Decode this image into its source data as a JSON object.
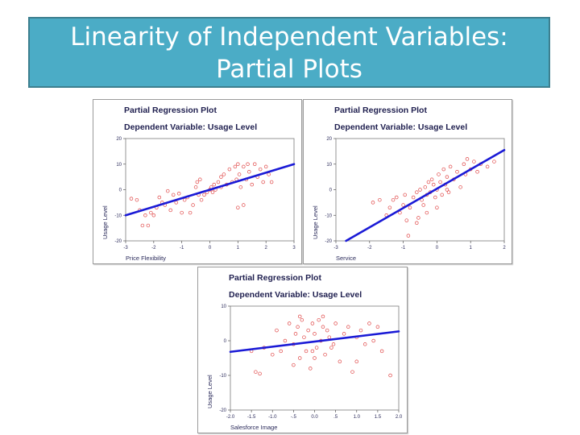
{
  "slide": {
    "title_line1": "Linearity of Independent Variables:",
    "title_line2": "Partial Plots"
  },
  "colors": {
    "title_bg": "#4bacc6",
    "point": "#e04848",
    "fit_line": "#1a1ad6"
  },
  "chart_data": [
    {
      "type": "scatter",
      "title": "Partial Regression Plot",
      "subtitle": "Dependent Variable: Usage Level",
      "xlabel": "Price Flexibility",
      "ylabel": "Usage Level",
      "xlim": [
        -3,
        3
      ],
      "ylim": [
        -20,
        20
      ],
      "xticks": [
        -3,
        -2,
        -1,
        0,
        1,
        2,
        3
      ],
      "yticks": [
        20,
        10,
        0,
        -10,
        -20
      ],
      "x_tick_labels": [
        "-3",
        "-2",
        "-1",
        "0",
        "1",
        "2",
        "3"
      ],
      "y_tick_labels": [
        "20",
        "10",
        "0",
        "-10",
        "-20"
      ],
      "fit_line": {
        "x": [
          -3,
          3
        ],
        "y": [
          -10,
          10
        ]
      },
      "points": [
        {
          "x": -2.8,
          "y": -3.5
        },
        {
          "x": -2.6,
          "y": -4
        },
        {
          "x": -2.5,
          "y": -8
        },
        {
          "x": -2.4,
          "y": -14
        },
        {
          "x": -2.3,
          "y": -10
        },
        {
          "x": -2.2,
          "y": -14
        },
        {
          "x": -2.1,
          "y": -9
        },
        {
          "x": -2.0,
          "y": -10
        },
        {
          "x": -1.9,
          "y": -7
        },
        {
          "x": -1.8,
          "y": -3
        },
        {
          "x": -1.7,
          "y": -5
        },
        {
          "x": -1.6,
          "y": -6
        },
        {
          "x": -1.5,
          "y": -0.5
        },
        {
          "x": -1.4,
          "y": -8
        },
        {
          "x": -1.3,
          "y": -2
        },
        {
          "x": -1.2,
          "y": -5
        },
        {
          "x": -1.1,
          "y": -1.5
        },
        {
          "x": -1.0,
          "y": -9
        },
        {
          "x": -0.9,
          "y": -4
        },
        {
          "x": -0.8,
          "y": -3
        },
        {
          "x": -0.7,
          "y": -9
        },
        {
          "x": -0.6,
          "y": -6
        },
        {
          "x": -0.5,
          "y": 1
        },
        {
          "x": -0.45,
          "y": 3
        },
        {
          "x": -0.4,
          "y": -2
        },
        {
          "x": -0.35,
          "y": 4
        },
        {
          "x": -0.3,
          "y": -4
        },
        {
          "x": -0.2,
          "y": -2
        },
        {
          "x": -0.1,
          "y": -1
        },
        {
          "x": 0.0,
          "y": 0
        },
        {
          "x": 0.05,
          "y": 1
        },
        {
          "x": 0.1,
          "y": -1
        },
        {
          "x": 0.15,
          "y": 2
        },
        {
          "x": 0.2,
          "y": 0
        },
        {
          "x": 0.3,
          "y": 3
        },
        {
          "x": 0.4,
          "y": 1
        },
        {
          "x": 0.5,
          "y": 6
        },
        {
          "x": 0.6,
          "y": 2
        },
        {
          "x": 0.7,
          "y": 8
        },
        {
          "x": 0.8,
          "y": 3
        },
        {
          "x": 0.9,
          "y": 9
        },
        {
          "x": 0.95,
          "y": 4
        },
        {
          "x": 1.0,
          "y": 10
        },
        {
          "x": 1.05,
          "y": 6
        },
        {
          "x": 1.1,
          "y": 1
        },
        {
          "x": 1.2,
          "y": 9
        },
        {
          "x": 1.3,
          "y": 4
        },
        {
          "x": 1.35,
          "y": 10
        },
        {
          "x": 1.4,
          "y": 7
        },
        {
          "x": 1.5,
          "y": 2
        },
        {
          "x": 1.6,
          "y": 10
        },
        {
          "x": 1.7,
          "y": 5
        },
        {
          "x": 1.8,
          "y": 8
        },
        {
          "x": 1.9,
          "y": 3
        },
        {
          "x": 2.0,
          "y": 9
        },
        {
          "x": 2.1,
          "y": 6
        },
        {
          "x": 2.2,
          "y": 3
        },
        {
          "x": 1.0,
          "y": -7
        },
        {
          "x": 1.2,
          "y": -6
        },
        {
          "x": 0.4,
          "y": 5
        }
      ]
    },
    {
      "type": "scatter",
      "title": "Partial Regression Plot",
      "subtitle": "Dependent Variable: Usage Level",
      "xlabel": "Service",
      "ylabel": "Usage Level",
      "xlim": [
        -3,
        2
      ],
      "ylim": [
        -20,
        20
      ],
      "xticks": [
        -3,
        -2,
        -1,
        0,
        1,
        2
      ],
      "yticks": [
        20,
        10,
        0,
        -10,
        -20
      ],
      "x_tick_labels": [
        "-3",
        "-2",
        "-1",
        "0",
        "1",
        "2"
      ],
      "y_tick_labels": [
        "20",
        "10",
        "0",
        "-10",
        "-20"
      ],
      "fit_line": {
        "x": [
          -2.7,
          2.0
        ],
        "y": [
          -20,
          15.5
        ]
      },
      "points": [
        {
          "x": -1.9,
          "y": -5
        },
        {
          "x": -1.7,
          "y": -4
        },
        {
          "x": -1.5,
          "y": -10
        },
        {
          "x": -1.4,
          "y": -7
        },
        {
          "x": -1.3,
          "y": -4
        },
        {
          "x": -1.2,
          "y": -3
        },
        {
          "x": -1.1,
          "y": -9
        },
        {
          "x": -1.0,
          "y": -6
        },
        {
          "x": -0.95,
          "y": -2
        },
        {
          "x": -0.9,
          "y": -12
        },
        {
          "x": -0.85,
          "y": -18
        },
        {
          "x": -0.8,
          "y": -7
        },
        {
          "x": -0.7,
          "y": -3
        },
        {
          "x": -0.6,
          "y": -1
        },
        {
          "x": -0.55,
          "y": -11
        },
        {
          "x": -0.5,
          "y": 0
        },
        {
          "x": -0.45,
          "y": -4
        },
        {
          "x": -0.4,
          "y": -6
        },
        {
          "x": -0.35,
          "y": 1
        },
        {
          "x": -0.3,
          "y": -2
        },
        {
          "x": -0.25,
          "y": 3
        },
        {
          "x": -0.2,
          "y": -1
        },
        {
          "x": -0.15,
          "y": 4
        },
        {
          "x": -0.1,
          "y": 2
        },
        {
          "x": -0.05,
          "y": -3
        },
        {
          "x": 0.0,
          "y": 0
        },
        {
          "x": 0.05,
          "y": 6
        },
        {
          "x": 0.1,
          "y": 3
        },
        {
          "x": 0.15,
          "y": -2
        },
        {
          "x": 0.2,
          "y": 8
        },
        {
          "x": 0.25,
          "y": 2
        },
        {
          "x": 0.3,
          "y": 5
        },
        {
          "x": 0.35,
          "y": -1
        },
        {
          "x": 0.4,
          "y": 9
        },
        {
          "x": 0.5,
          "y": 4
        },
        {
          "x": 0.6,
          "y": 7
        },
        {
          "x": 0.7,
          "y": 1
        },
        {
          "x": 0.8,
          "y": 10
        },
        {
          "x": 0.85,
          "y": 6
        },
        {
          "x": 0.9,
          "y": 12
        },
        {
          "x": 1.0,
          "y": 8
        },
        {
          "x": 1.1,
          "y": 11
        },
        {
          "x": 1.2,
          "y": 7
        },
        {
          "x": 1.3,
          "y": 10
        },
        {
          "x": 1.5,
          "y": 9
        },
        {
          "x": 1.7,
          "y": 11
        },
        {
          "x": -0.3,
          "y": -9
        },
        {
          "x": 0.0,
          "y": -7
        },
        {
          "x": 0.3,
          "y": 0
        },
        {
          "x": -0.6,
          "y": -13
        }
      ]
    },
    {
      "type": "scatter",
      "title": "Partial Regression Plot",
      "subtitle": "Dependent Variable: Usage Level",
      "xlabel": "Salesforce Image",
      "ylabel": "Usage Level",
      "xlim": [
        -2.0,
        2.0
      ],
      "ylim": [
        -20,
        10
      ],
      "xticks": [
        -2.0,
        -1.5,
        -1.0,
        -0.5,
        0.0,
        0.5,
        1.0,
        1.5,
        2.0
      ],
      "yticks": [
        10,
        0,
        -10,
        -20
      ],
      "x_tick_labels": [
        "-2.0",
        "-1.5",
        "-1.0",
        "-.5",
        "0.0",
        ".5",
        "1.0",
        "1.5",
        "2.0"
      ],
      "y_tick_labels": [
        "10",
        "0",
        "-10",
        "-20"
      ],
      "fit_line": {
        "x": [
          -2.0,
          2.0
        ],
        "y": [
          -3.2,
          2.7
        ]
      },
      "points": [
        {
          "x": -1.5,
          "y": -3
        },
        {
          "x": -1.4,
          "y": -9
        },
        {
          "x": -1.3,
          "y": -9.5
        },
        {
          "x": -1.2,
          "y": -2
        },
        {
          "x": -1.0,
          "y": -4
        },
        {
          "x": -0.9,
          "y": 3
        },
        {
          "x": -0.8,
          "y": -3
        },
        {
          "x": -0.7,
          "y": 0
        },
        {
          "x": -0.6,
          "y": 5
        },
        {
          "x": -0.5,
          "y": -1
        },
        {
          "x": -0.45,
          "y": 2
        },
        {
          "x": -0.4,
          "y": 4
        },
        {
          "x": -0.35,
          "y": -5
        },
        {
          "x": -0.3,
          "y": 6
        },
        {
          "x": -0.25,
          "y": 1
        },
        {
          "x": -0.2,
          "y": -3
        },
        {
          "x": -0.15,
          "y": 3
        },
        {
          "x": -0.1,
          "y": -8
        },
        {
          "x": -0.05,
          "y": 5
        },
        {
          "x": 0.0,
          "y": 2
        },
        {
          "x": 0.05,
          "y": -2
        },
        {
          "x": 0.1,
          "y": 6
        },
        {
          "x": 0.15,
          "y": 0
        },
        {
          "x": 0.2,
          "y": 4
        },
        {
          "x": 0.25,
          "y": -4
        },
        {
          "x": 0.3,
          "y": 3
        },
        {
          "x": 0.35,
          "y": 1
        },
        {
          "x": 0.4,
          "y": -2
        },
        {
          "x": 0.5,
          "y": 5
        },
        {
          "x": 0.6,
          "y": -6
        },
        {
          "x": 0.7,
          "y": 2
        },
        {
          "x": 0.8,
          "y": 4
        },
        {
          "x": 0.9,
          "y": -9
        },
        {
          "x": 1.0,
          "y": 1
        },
        {
          "x": 1.1,
          "y": 3
        },
        {
          "x": 1.2,
          "y": -1
        },
        {
          "x": 1.3,
          "y": 5
        },
        {
          "x": 1.4,
          "y": 0
        },
        {
          "x": 1.5,
          "y": 4
        },
        {
          "x": 1.6,
          "y": -3
        },
        {
          "x": 1.8,
          "y": -10
        },
        {
          "x": -0.35,
          "y": 7
        },
        {
          "x": 0.0,
          "y": -5
        },
        {
          "x": 0.2,
          "y": 7
        },
        {
          "x": -0.5,
          "y": -7
        },
        {
          "x": 0.45,
          "y": -1
        },
        {
          "x": 1.0,
          "y": -6
        },
        {
          "x": -0.05,
          "y": -3
        }
      ]
    }
  ]
}
